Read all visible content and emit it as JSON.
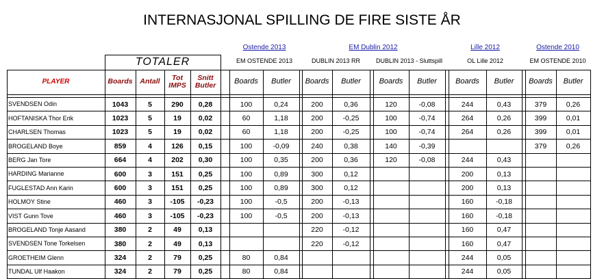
{
  "title": "INTERNASJONAL SPILLING DE FIRE SISTE ÅR",
  "links": [
    "Ostende 2013",
    "EM Dublin 2012",
    "Lille 2012",
    "Ostende 2010"
  ],
  "totals_header": "TOTALER",
  "events": [
    "EM OSTENDE 2013",
    "DUBLIN 2013 RR",
    "DUBLIN 2013 - Sluttspill",
    "OL Lille 2012",
    "EM OSTENDE 2010"
  ],
  "columns": [
    "PLAYER",
    "Boards",
    "Antall",
    "Tot IMPS",
    "Snitt Butler"
  ],
  "group_columns": [
    "Boards",
    "Butler"
  ],
  "rows": [
    {
      "player": "SVENDSEN Odin",
      "totals": [
        "1043",
        "5",
        "290",
        "0,28"
      ],
      "results": [
        "100",
        "0,24",
        "200",
        "0,36",
        "120",
        "-0,08",
        "244",
        "0,43",
        "379",
        "0,26"
      ]
    },
    {
      "player": "HOFTANISKA Thor Erik",
      "totals": [
        "1023",
        "5",
        "19",
        "0,02"
      ],
      "results": [
        "60",
        "1,18",
        "200",
        "-0,25",
        "100",
        "-0,74",
        "264",
        "0,26",
        "399",
        "0,01"
      ]
    },
    {
      "player": "CHARLSEN Thomas",
      "totals": [
        "1023",
        "5",
        "19",
        "0,02"
      ],
      "results": [
        "60",
        "1,18",
        "200",
        "-0,25",
        "100",
        "-0,74",
        "264",
        "0,26",
        "399",
        "0,01"
      ]
    },
    {
      "player": "BROGELAND Boye",
      "totals": [
        "859",
        "4",
        "126",
        "0,15"
      ],
      "results": [
        "100",
        "-0,09",
        "240",
        "0,38",
        "140",
        "-0,39",
        null,
        null,
        "379",
        "0,26"
      ]
    },
    {
      "player": "BERG Jan Tore",
      "totals": [
        "664",
        "4",
        "202",
        "0,30"
      ],
      "results": [
        "100",
        "0,35",
        "200",
        "0,36",
        "120",
        "-0,08",
        "244",
        "0,43",
        null,
        null
      ]
    },
    {
      "player": "HARDING Marianne",
      "totals": [
        "600",
        "3",
        "151",
        "0,25"
      ],
      "results": [
        "100",
        "0,89",
        "300",
        "0,12",
        null,
        null,
        "200",
        "0,13",
        null,
        null
      ]
    },
    {
      "player": "FUGLESTAD Ann Karin",
      "totals": [
        "600",
        "3",
        "151",
        "0,25"
      ],
      "results": [
        "100",
        "0,89",
        "300",
        "0,12",
        null,
        null,
        "200",
        "0,13",
        null,
        null
      ]
    },
    {
      "player": "HOLMOY Stine",
      "totals": [
        "460",
        "3",
        "-105",
        "-0,23"
      ],
      "results": [
        "100",
        "-0,5",
        "200",
        "-0,13",
        null,
        null,
        "160",
        "-0,18",
        null,
        null
      ]
    },
    {
      "player": "VIST Gunn Tove",
      "totals": [
        "460",
        "3",
        "-105",
        "-0,23"
      ],
      "results": [
        "100",
        "-0,5",
        "200",
        "-0,13",
        null,
        null,
        "160",
        "-0,18",
        null,
        null
      ]
    },
    {
      "player": "BROGELAND Tonje Aasand",
      "totals": [
        "380",
        "2",
        "49",
        "0,13"
      ],
      "results": [
        null,
        null,
        "220",
        "-0,12",
        null,
        null,
        "160",
        "0,47",
        null,
        null
      ]
    },
    {
      "player": "SVENDSEN Tone Torkelsen",
      "totals": [
        "380",
        "2",
        "49",
        "0,13"
      ],
      "results": [
        null,
        null,
        "220",
        "-0,12",
        null,
        null,
        "160",
        "0,47",
        null,
        null
      ]
    },
    {
      "player": "GROETHEIM Glenn",
      "totals": [
        "324",
        "2",
        "79",
        "0,25"
      ],
      "results": [
        "80",
        "0,84",
        null,
        null,
        null,
        null,
        "244",
        "0,05",
        null,
        null
      ]
    },
    {
      "player": "TUNDAL Ulf Haakon",
      "totals": [
        "324",
        "2",
        "79",
        "0,25"
      ],
      "results": [
        "80",
        "0,84",
        null,
        null,
        null,
        null,
        "244",
        "0,05",
        null,
        null
      ]
    }
  ]
}
